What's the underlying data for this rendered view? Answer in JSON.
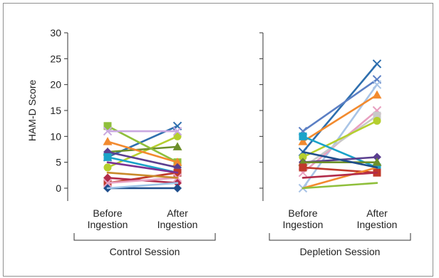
{
  "chart_data": [
    {
      "type": "line",
      "group_label": "Control Session",
      "ylabel": "HAM-D Score",
      "ylim": [
        0,
        30
      ],
      "yticks": [
        0,
        5,
        10,
        15,
        20,
        25,
        30
      ],
      "categories": [
        "Before\nIngestion",
        "After\nIngestion"
      ],
      "series": [
        {
          "color": "#2e6fae",
          "marker": "x",
          "values": [
            6,
            12
          ]
        },
        {
          "color": "#b5cf2e",
          "marker": "circle",
          "values": [
            4,
            10
          ]
        },
        {
          "color": "#6d8f2a",
          "marker": "triangle",
          "values": [
            7,
            8
          ]
        },
        {
          "color": "#8fbf3b",
          "marker": "square",
          "values": [
            12,
            5
          ]
        },
        {
          "color": "#f28a2e",
          "marker": "triangle",
          "values": [
            9,
            5
          ]
        },
        {
          "color": "#5b3f8f",
          "marker": "diamond",
          "values": [
            7,
            4
          ]
        },
        {
          "color": "#1aa3c9",
          "marker": "square",
          "values": [
            6,
            3
          ]
        },
        {
          "color": "#c0392b",
          "marker": "square",
          "values": [
            1,
            3
          ]
        },
        {
          "color": "#b22b4a",
          "marker": "diamond",
          "values": [
            2,
            1
          ]
        },
        {
          "color": "#1f4e8c",
          "marker": "diamond",
          "values": [
            0,
            0
          ]
        },
        {
          "color": "#e8a0c0",
          "marker": "x",
          "values": [
            1,
            2
          ]
        },
        {
          "color": "#c9a8e0",
          "marker": "x",
          "values": [
            11,
            11
          ]
        },
        {
          "color": "#c98a2b",
          "marker": "none",
          "values": [
            3,
            2
          ]
        },
        {
          "color": "#9fc5e8",
          "marker": "none",
          "values": [
            0,
            1
          ]
        },
        {
          "color": "#7b3294",
          "marker": "none",
          "values": [
            5,
            3
          ]
        }
      ]
    },
    {
      "type": "line",
      "group_label": "Depletion Session",
      "ylim": [
        0,
        30
      ],
      "categories": [
        "Before\nIngestion",
        "After\nIngestion"
      ],
      "series": [
        {
          "color": "#2e6fae",
          "marker": "x",
          "values": [
            7,
            24
          ]
        },
        {
          "color": "#5b7fc4",
          "marker": "x",
          "values": [
            11,
            21
          ]
        },
        {
          "color": "#a9c4e6",
          "marker": "x",
          "values": [
            0,
            20
          ]
        },
        {
          "color": "#f28a2e",
          "marker": "triangle",
          "values": [
            9,
            18
          ]
        },
        {
          "color": "#e8a0c0",
          "marker": "x",
          "values": [
            3,
            15
          ]
        },
        {
          "color": "#c9c9c9",
          "marker": "square",
          "values": [
            4,
            14
          ]
        },
        {
          "color": "#b5cf2e",
          "marker": "circle",
          "values": [
            6,
            13
          ]
        },
        {
          "color": "#1aa3c9",
          "marker": "square",
          "values": [
            10,
            4
          ]
        },
        {
          "color": "#5b3f8f",
          "marker": "diamond",
          "values": [
            5,
            6
          ]
        },
        {
          "color": "#6d8f2a",
          "marker": "triangle",
          "values": [
            5,
            5
          ]
        },
        {
          "color": "#c0392b",
          "marker": "square",
          "values": [
            4,
            3
          ]
        },
        {
          "color": "#f28a2e",
          "marker": "none",
          "values": [
            0,
            4
          ]
        },
        {
          "color": "#8fbf3b",
          "marker": "none",
          "values": [
            0,
            1
          ]
        },
        {
          "color": "#1f4e8c",
          "marker": "none",
          "values": [
            7,
            4
          ]
        },
        {
          "color": "#b22b4a",
          "marker": "none",
          "values": [
            2,
            3
          ]
        }
      ]
    }
  ]
}
